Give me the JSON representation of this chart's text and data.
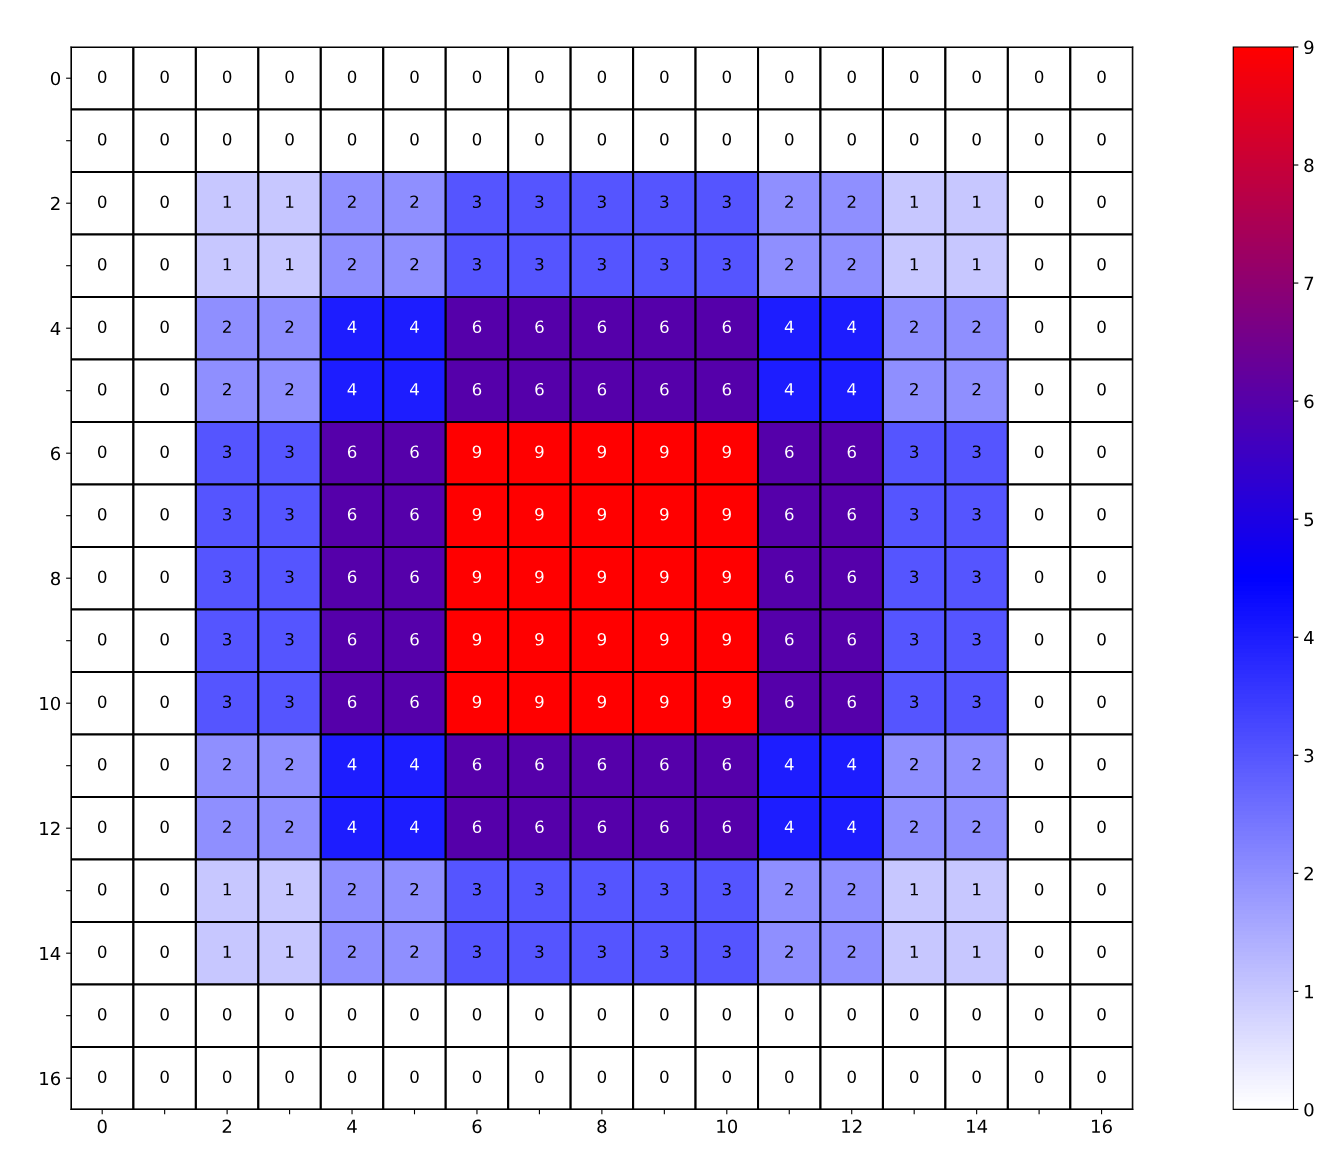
{
  "chart_data": {
    "type": "heatmap",
    "cells": [
      [
        0,
        0,
        0,
        0,
        0,
        0,
        0,
        0,
        0,
        0,
        0,
        0,
        0,
        0,
        0,
        0,
        0
      ],
      [
        0,
        0,
        0,
        0,
        0,
        0,
        0,
        0,
        0,
        0,
        0,
        0,
        0,
        0,
        0,
        0,
        0
      ],
      [
        0,
        0,
        1,
        1,
        2,
        2,
        3,
        3,
        3,
        3,
        3,
        2,
        2,
        1,
        1,
        0,
        0
      ],
      [
        0,
        0,
        1,
        1,
        2,
        2,
        3,
        3,
        3,
        3,
        3,
        2,
        2,
        1,
        1,
        0,
        0
      ],
      [
        0,
        0,
        2,
        2,
        4,
        4,
        6,
        6,
        6,
        6,
        6,
        4,
        4,
        2,
        2,
        0,
        0
      ],
      [
        0,
        0,
        2,
        2,
        4,
        4,
        6,
        6,
        6,
        6,
        6,
        4,
        4,
        2,
        2,
        0,
        0
      ],
      [
        0,
        0,
        3,
        3,
        6,
        6,
        9,
        9,
        9,
        9,
        9,
        6,
        6,
        3,
        3,
        0,
        0
      ],
      [
        0,
        0,
        3,
        3,
        6,
        6,
        9,
        9,
        9,
        9,
        9,
        6,
        6,
        3,
        3,
        0,
        0
      ],
      [
        0,
        0,
        3,
        3,
        6,
        6,
        9,
        9,
        9,
        9,
        9,
        6,
        6,
        3,
        3,
        0,
        0
      ],
      [
        0,
        0,
        3,
        3,
        6,
        6,
        9,
        9,
        9,
        9,
        9,
        6,
        6,
        3,
        3,
        0,
        0
      ],
      [
        0,
        0,
        3,
        3,
        6,
        6,
        9,
        9,
        9,
        9,
        9,
        6,
        6,
        3,
        3,
        0,
        0
      ],
      [
        0,
        0,
        2,
        2,
        4,
        4,
        6,
        6,
        6,
        6,
        6,
        4,
        4,
        2,
        2,
        0,
        0
      ],
      [
        0,
        0,
        2,
        2,
        4,
        4,
        6,
        6,
        6,
        6,
        6,
        4,
        4,
        2,
        2,
        0,
        0
      ],
      [
        0,
        0,
        1,
        1,
        2,
        2,
        3,
        3,
        3,
        3,
        3,
        2,
        2,
        1,
        1,
        0,
        0
      ],
      [
        0,
        0,
        1,
        1,
        2,
        2,
        3,
        3,
        3,
        3,
        3,
        2,
        2,
        1,
        1,
        0,
        0
      ],
      [
        0,
        0,
        0,
        0,
        0,
        0,
        0,
        0,
        0,
        0,
        0,
        0,
        0,
        0,
        0,
        0,
        0
      ],
      [
        0,
        0,
        0,
        0,
        0,
        0,
        0,
        0,
        0,
        0,
        0,
        0,
        0,
        0,
        0,
        0,
        0
      ]
    ],
    "data_labels": true,
    "colors": [
      "#ffffff",
      "#0000ff",
      "#ff0000"
    ],
    "xlim": [
      -0.5,
      16.5
    ],
    "ylim": [
      16.5,
      -0.5
    ],
    "xticks": [
      0,
      {
        "value": 1,
        "label": null
      },
      2,
      {
        "value": 3,
        "label": null
      },
      4,
      {
        "value": 5,
        "label": null
      },
      6,
      {
        "value": 7,
        "label": null
      },
      8,
      {
        "value": 9,
        "label": null
      },
      10,
      {
        "value": 11,
        "label": null
      },
      12,
      {
        "value": 13,
        "label": null
      },
      14,
      {
        "value": 15,
        "label": null
      },
      16
    ],
    "yticks": [
      0,
      {
        "value": 1,
        "label": null
      },
      2,
      {
        "value": 3,
        "label": null
      },
      4,
      {
        "value": 5,
        "label": null
      },
      6,
      {
        "value": 7,
        "label": null
      },
      8,
      {
        "value": 9,
        "label": null
      },
      10,
      {
        "value": 11,
        "label": null
      },
      12,
      {
        "value": 13,
        "label": null
      },
      14,
      {
        "value": 15,
        "label": null
      },
      16
    ],
    "clim": [
      0,
      9
    ],
    "cticks": [
      0,
      1,
      2,
      3,
      4,
      5,
      6,
      7,
      8,
      9
    ]
  }
}
